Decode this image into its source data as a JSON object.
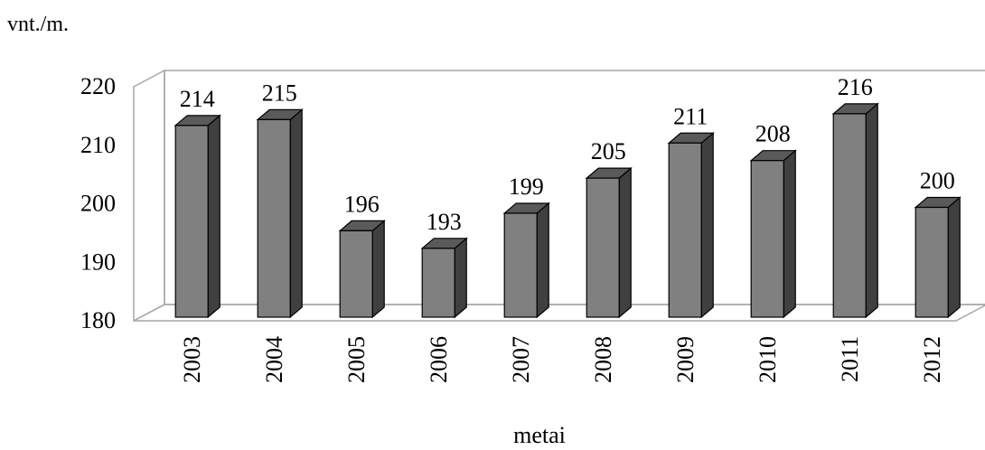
{
  "chart_data": {
    "type": "bar",
    "title": "",
    "ylabel": "vnt./m.",
    "xlabel": "metai",
    "categories": [
      "2003",
      "2004",
      "2005",
      "2006",
      "2007",
      "2008",
      "2009",
      "2010",
      "2011",
      "2012"
    ],
    "values": [
      214,
      215,
      196,
      193,
      199,
      205,
      211,
      208,
      216,
      200
    ],
    "ylim": [
      180,
      220
    ],
    "yticks": [
      180,
      190,
      200,
      210,
      220
    ],
    "grid": false,
    "legend": "none",
    "style": "3d-column",
    "colors": {
      "bar_front": "#808080",
      "bar_top": "#5a5a5a",
      "bar_side": "#404040",
      "wall": "#a6a6a6"
    }
  }
}
